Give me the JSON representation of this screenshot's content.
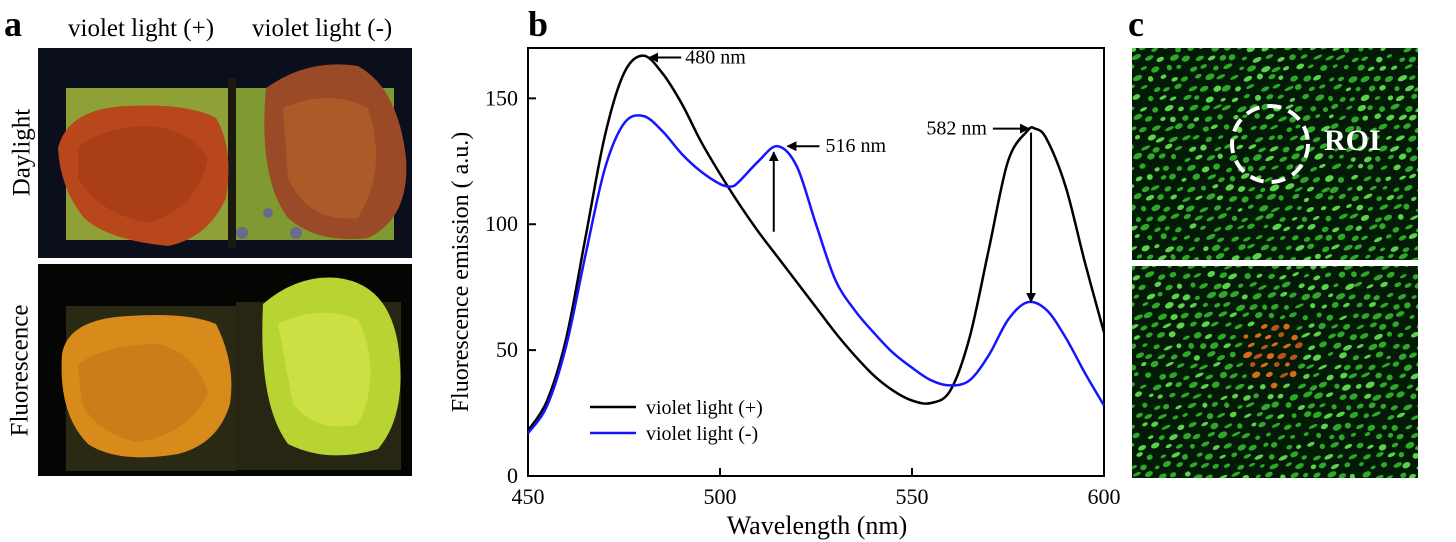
{
  "panels": {
    "a": {
      "letter": "a",
      "col_labels": [
        "violet light (+)",
        "violet light (-)"
      ],
      "row_labels": [
        "Daylight",
        "Fluorescence"
      ]
    },
    "b": {
      "letter": "b"
    },
    "c": {
      "letter": "c",
      "roi_label": "ROI"
    }
  },
  "chart_data": {
    "type": "line",
    "title": "",
    "xlabel": "Wavelength (nm)",
    "ylabel": "Fluorescence emission ( a.u.)",
    "xlim": [
      450,
      600
    ],
    "ylim": [
      0,
      170
    ],
    "xticks": [
      450,
      500,
      550,
      600
    ],
    "yticks": [
      0,
      50,
      100,
      150
    ],
    "grid": false,
    "legend": "bottom-left",
    "series": [
      {
        "name": "violet light (+)",
        "color": "#000000",
        "x": [
          450,
          455,
          460,
          465,
          470,
          475,
          480,
          485,
          490,
          495,
          500,
          505,
          510,
          515,
          520,
          525,
          530,
          535,
          540,
          545,
          550,
          555,
          560,
          565,
          570,
          575,
          580,
          582,
          585,
          590,
          595,
          600
        ],
        "y": [
          18,
          30,
          55,
          95,
          135,
          160,
          167,
          160,
          148,
          133,
          120,
          108,
          97,
          87,
          77,
          67,
          57,
          48,
          40,
          34,
          30,
          29,
          34,
          55,
          90,
          125,
          137,
          138,
          134,
          115,
          85,
          57
        ]
      },
      {
        "name": "violet light (-)",
        "color": "#1515ff",
        "x": [
          450,
          455,
          460,
          465,
          470,
          475,
          480,
          485,
          490,
          495,
          500,
          503,
          505,
          510,
          515,
          520,
          525,
          530,
          535,
          540,
          545,
          550,
          555,
          560,
          565,
          570,
          575,
          580,
          585,
          590,
          595,
          600
        ],
        "y": [
          17,
          28,
          52,
          88,
          122,
          140,
          143,
          137,
          128,
          121,
          116,
          115,
          117,
          125,
          131,
          123,
          100,
          78,
          66,
          57,
          49,
          43,
          38,
          36,
          38,
          48,
          62,
          69,
          66,
          55,
          41,
          28
        ]
      }
    ],
    "annotations": [
      {
        "text": "480 nm"
      },
      {
        "text": "516 nm"
      },
      {
        "text": "582 nm"
      }
    ]
  }
}
